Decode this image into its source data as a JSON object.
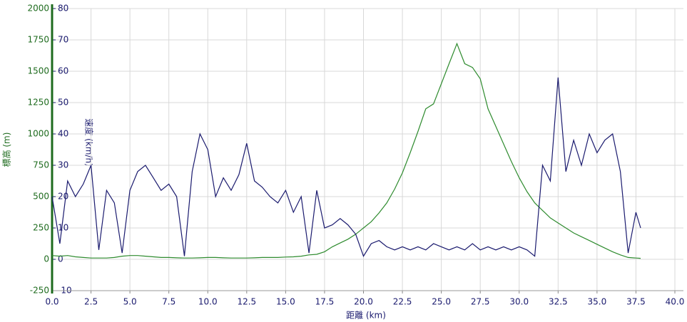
{
  "chart_data": {
    "type": "line",
    "xlabel": "距離 (km)",
    "ylabel": "標高 (m)",
    "y2label": "速度 (km/h)",
    "x": [
      0,
      0.5,
      1,
      1.5,
      2,
      2.5,
      3,
      3.5,
      4,
      4.5,
      5,
      5.5,
      6,
      6.5,
      7,
      7.5,
      8,
      8.5,
      9,
      9.5,
      10,
      10.5,
      11,
      11.5,
      12,
      12.5,
      13,
      13.5,
      14,
      14.5,
      15,
      15.5,
      16,
      16.5,
      17,
      17.5,
      18,
      18.5,
      19,
      19.5,
      20,
      20.5,
      21,
      21.5,
      22,
      22.5,
      23,
      23.5,
      24,
      24.5,
      25,
      25.5,
      26,
      26.5,
      27,
      27.5,
      28,
      28.5,
      29,
      29.5,
      30,
      30.5,
      31,
      31.5,
      32,
      32.5,
      33,
      33.5,
      34,
      34.5,
      35,
      35.5,
      36,
      36.5,
      37,
      37.5,
      37.8
    ],
    "series": [
      {
        "name": "標高",
        "color": "#2e8b2e",
        "axis": "y",
        "values": [
          30,
          25,
          30,
          20,
          15,
          10,
          10,
          10,
          15,
          25,
          30,
          30,
          25,
          20,
          15,
          15,
          12,
          10,
          10,
          12,
          15,
          15,
          12,
          10,
          10,
          10,
          12,
          15,
          15,
          15,
          18,
          20,
          25,
          35,
          40,
          60,
          100,
          130,
          160,
          200,
          250,
          300,
          370,
          450,
          560,
          690,
          850,
          1020,
          1200,
          1240,
          1400,
          1560,
          1720,
          1560,
          1530,
          1440,
          1200,
          1060,
          920,
          780,
          650,
          540,
          450,
          390,
          330,
          290,
          250,
          210,
          180,
          150,
          120,
          90,
          60,
          35,
          15,
          10,
          8
        ]
      },
      {
        "name": "速度",
        "color": "#1a1a6e",
        "axis": "y2",
        "values": [
          20,
          5,
          25,
          20,
          24,
          30,
          3,
          22,
          18,
          2,
          22,
          28,
          30,
          26,
          22,
          24,
          20,
          1,
          28,
          40,
          35,
          20,
          26,
          22,
          27,
          37,
          25,
          23,
          20,
          18,
          22,
          15,
          20,
          2,
          22,
          10,
          11,
          13,
          11,
          8,
          1,
          5,
          6,
          4,
          3,
          4,
          3,
          4,
          3,
          5,
          4,
          3,
          4,
          3,
          5,
          3,
          4,
          3,
          4,
          3,
          4,
          3,
          1,
          30,
          25,
          58,
          28,
          38,
          30,
          40,
          34,
          38,
          40,
          28,
          2,
          15,
          10
        ]
      }
    ],
    "xlim": [
      0,
      40
    ],
    "xticks": [
      {
        "value": 0,
        "label": "0.0"
      },
      2.5,
      {
        "value": 5,
        "label": "5.0"
      },
      7.5,
      {
        "value": 10,
        "label": "10.0"
      },
      12.5,
      {
        "value": 15,
        "label": "15.0"
      },
      17.5,
      {
        "value": 20,
        "label": "20.0"
      },
      22.5,
      {
        "value": 25,
        "label": "25.0"
      },
      27.5,
      {
        "value": 30,
        "label": "30.0"
      },
      32.5,
      {
        "value": 35,
        "label": "35.0"
      },
      37.5,
      {
        "value": 40,
        "label": "40.0"
      }
    ],
    "ylim": [
      -250,
      2000
    ],
    "yticks": [
      -250,
      0,
      250,
      500,
      750,
      1000,
      1250,
      1500,
      1750,
      2000
    ],
    "y2lim": [
      -10,
      80
    ],
    "y2ticks": [
      -10,
      0,
      10,
      20,
      30,
      40,
      50,
      60,
      70,
      80
    ],
    "grid": true
  }
}
